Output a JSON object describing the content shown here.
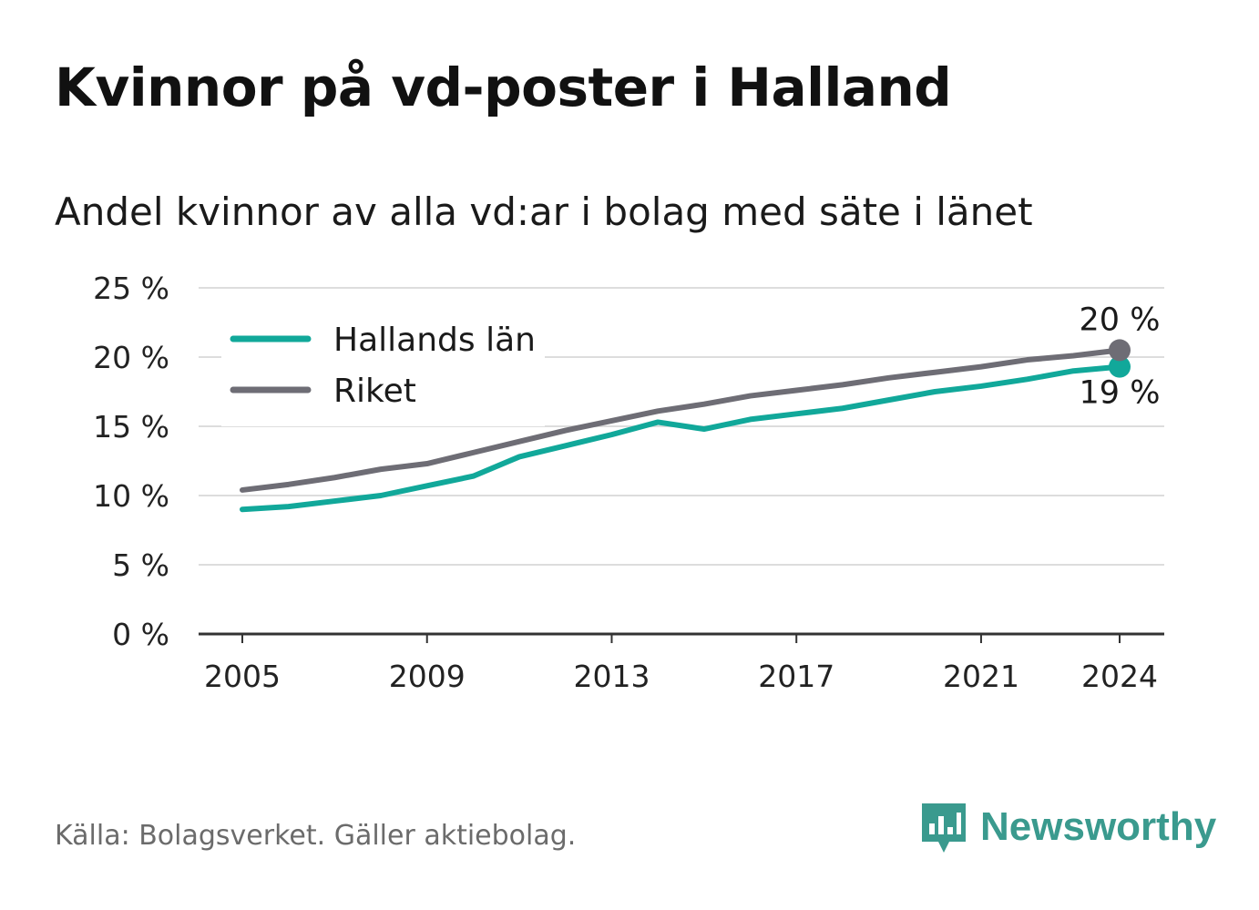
{
  "title": "Kvinnor på vd-poster i Halland",
  "subtitle": "Andel kvinnor av alla vd:ar i bolag med säte i länet",
  "footer": {
    "source": "Källa: Bolagsverket. Gäller aktiebolag.",
    "brand": "Newsworthy",
    "brand_icon": "newsworthy-logo-icon"
  },
  "colors": {
    "halland": "#11a89a",
    "riket": "#6e6d75",
    "grid": "#dddddd",
    "axis": "#333333",
    "brand": "#3a9a8e"
  },
  "chart_data": {
    "type": "line",
    "x": [
      2005,
      2006,
      2007,
      2008,
      2009,
      2010,
      2011,
      2012,
      2013,
      2014,
      2015,
      2016,
      2017,
      2018,
      2019,
      2020,
      2021,
      2022,
      2023,
      2024
    ],
    "series": [
      {
        "name": "Hallands län",
        "color": "#11a89a",
        "values": [
          9.0,
          9.2,
          9.6,
          10.0,
          10.7,
          11.4,
          12.8,
          13.6,
          14.4,
          15.3,
          14.8,
          15.5,
          15.9,
          16.3,
          16.9,
          17.5,
          17.9,
          18.4,
          19.0,
          19.3
        ],
        "end_label": "19 %"
      },
      {
        "name": "Riket",
        "color": "#6e6d75",
        "values": [
          10.4,
          10.8,
          11.3,
          11.9,
          12.3,
          13.1,
          13.9,
          14.7,
          15.4,
          16.1,
          16.6,
          17.2,
          17.6,
          18.0,
          18.5,
          18.9,
          19.3,
          19.8,
          20.1,
          20.5
        ],
        "end_label": "20 %"
      }
    ],
    "x_ticks": [
      "2005",
      "2009",
      "2013",
      "2017",
      "2021",
      "2024"
    ],
    "y_ticks": [
      "0 %",
      "5 %",
      "10 %",
      "15 %",
      "20 %",
      "25 %"
    ],
    "ylim": [
      0,
      25
    ],
    "xlim": [
      2005,
      2024
    ],
    "grid": true,
    "legend": "top-left"
  }
}
